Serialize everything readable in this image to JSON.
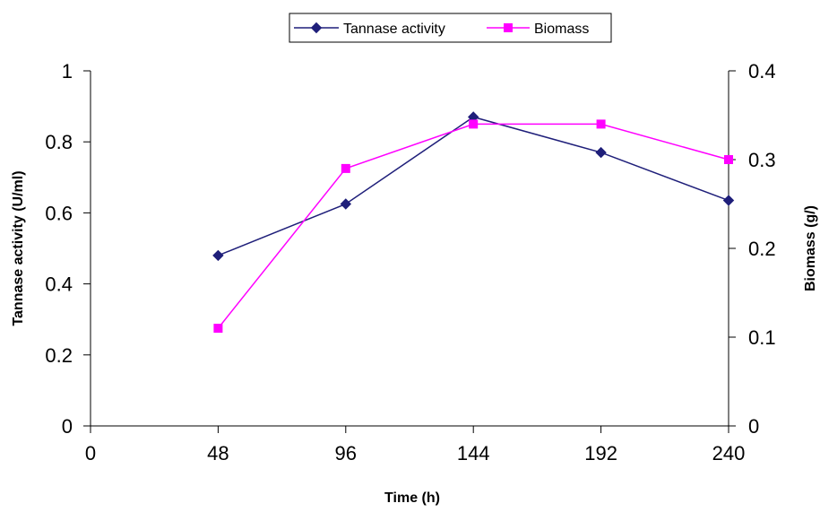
{
  "chart_data": {
    "type": "line",
    "xlabel": "Time (h)",
    "ylabel_left": "Tannase activity (U/ml)",
    "ylabel_right": "Biomass (g/)",
    "xlim": [
      0,
      240
    ],
    "x_ticks": [
      0,
      48,
      96,
      144,
      192,
      240
    ],
    "ylim_left": [
      0,
      1
    ],
    "y_ticks_left": [
      0,
      0.2,
      0.4,
      0.6,
      0.8,
      1
    ],
    "ylim_right": [
      0,
      0.4
    ],
    "y_ticks_right": [
      0,
      0.1,
      0.2,
      0.3,
      0.4
    ],
    "grid": false,
    "legend_position": "top-center",
    "series": [
      {
        "name": "Tannase activity",
        "axis": "left",
        "color": "#1f1f7a",
        "marker": "diamond",
        "x": [
          48,
          96,
          144,
          192,
          240
        ],
        "y": [
          0.48,
          0.625,
          0.87,
          0.77,
          0.635
        ]
      },
      {
        "name": "Biomass",
        "axis": "right",
        "color": "#ff00ff",
        "marker": "square",
        "x": [
          48,
          96,
          144,
          192,
          240
        ],
        "y": [
          0.11,
          0.29,
          0.34,
          0.34,
          0.3
        ]
      }
    ]
  }
}
